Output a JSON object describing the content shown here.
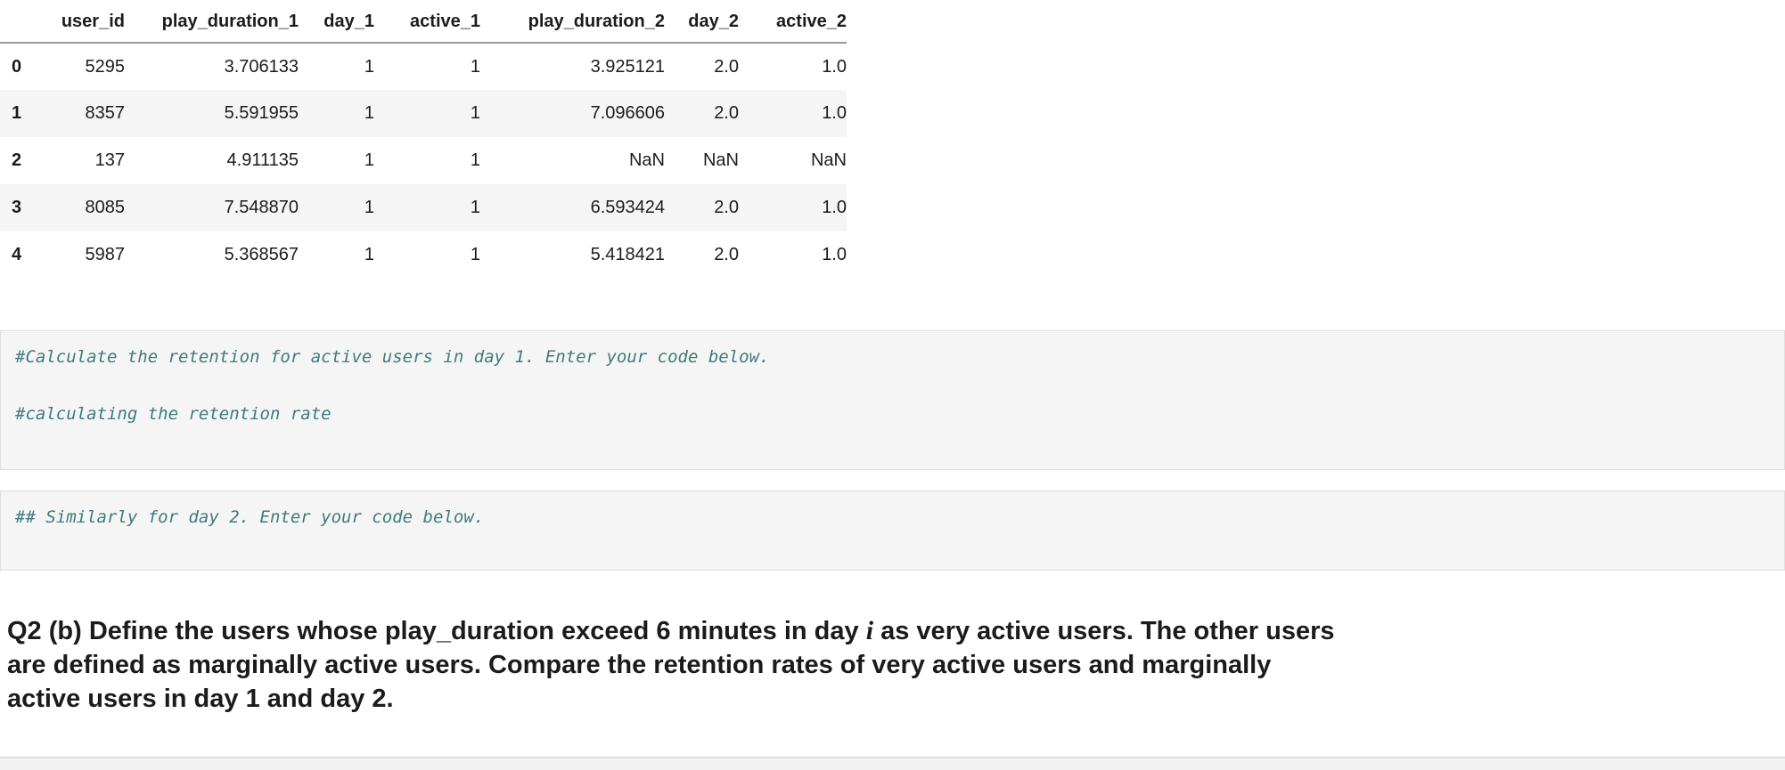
{
  "table": {
    "columns": [
      "user_id",
      "play_duration_1",
      "day_1",
      "active_1",
      "play_duration_2",
      "day_2",
      "active_2"
    ],
    "rows": [
      {
        "index": "0",
        "cells": [
          "5295",
          "3.706133",
          "1",
          "1",
          "3.925121",
          "2.0",
          "1.0"
        ]
      },
      {
        "index": "1",
        "cells": [
          "8357",
          "5.591955",
          "1",
          "1",
          "7.096606",
          "2.0",
          "1.0"
        ]
      },
      {
        "index": "2",
        "cells": [
          "137",
          "4.911135",
          "1",
          "1",
          "NaN",
          "NaN",
          "NaN"
        ]
      },
      {
        "index": "3",
        "cells": [
          "8085",
          "7.548870",
          "1",
          "1",
          "6.593424",
          "2.0",
          "1.0"
        ]
      },
      {
        "index": "4",
        "cells": [
          "5987",
          "5.368567",
          "1",
          "1",
          "5.418421",
          "2.0",
          "1.0"
        ]
      }
    ]
  },
  "cells": [
    {
      "source": "#Calculate the retention for active users in day 1. Enter your code below.\n\n#calculating the retention rate"
    },
    {
      "source": "## Similarly for day 2. Enter your code below."
    }
  ],
  "question": {
    "line1_pre": "Q2 (b) Define the users whose play_duration exceed 6 minutes in day ",
    "line1_italic": "i",
    "line1_post": " as very active users. The other users",
    "line2": "are defined as marginally active users. Compare the retention rates of very active users and marginally",
    "line3": "active users in day 1 and day 2."
  },
  "colors": {
    "comment_text": "#3E7B7B",
    "row_stripe": "#f5f5f5",
    "cell_background": "#f5f5f5",
    "cell_border": "#e0e0e0",
    "header_rule": "#9a9a9a"
  }
}
